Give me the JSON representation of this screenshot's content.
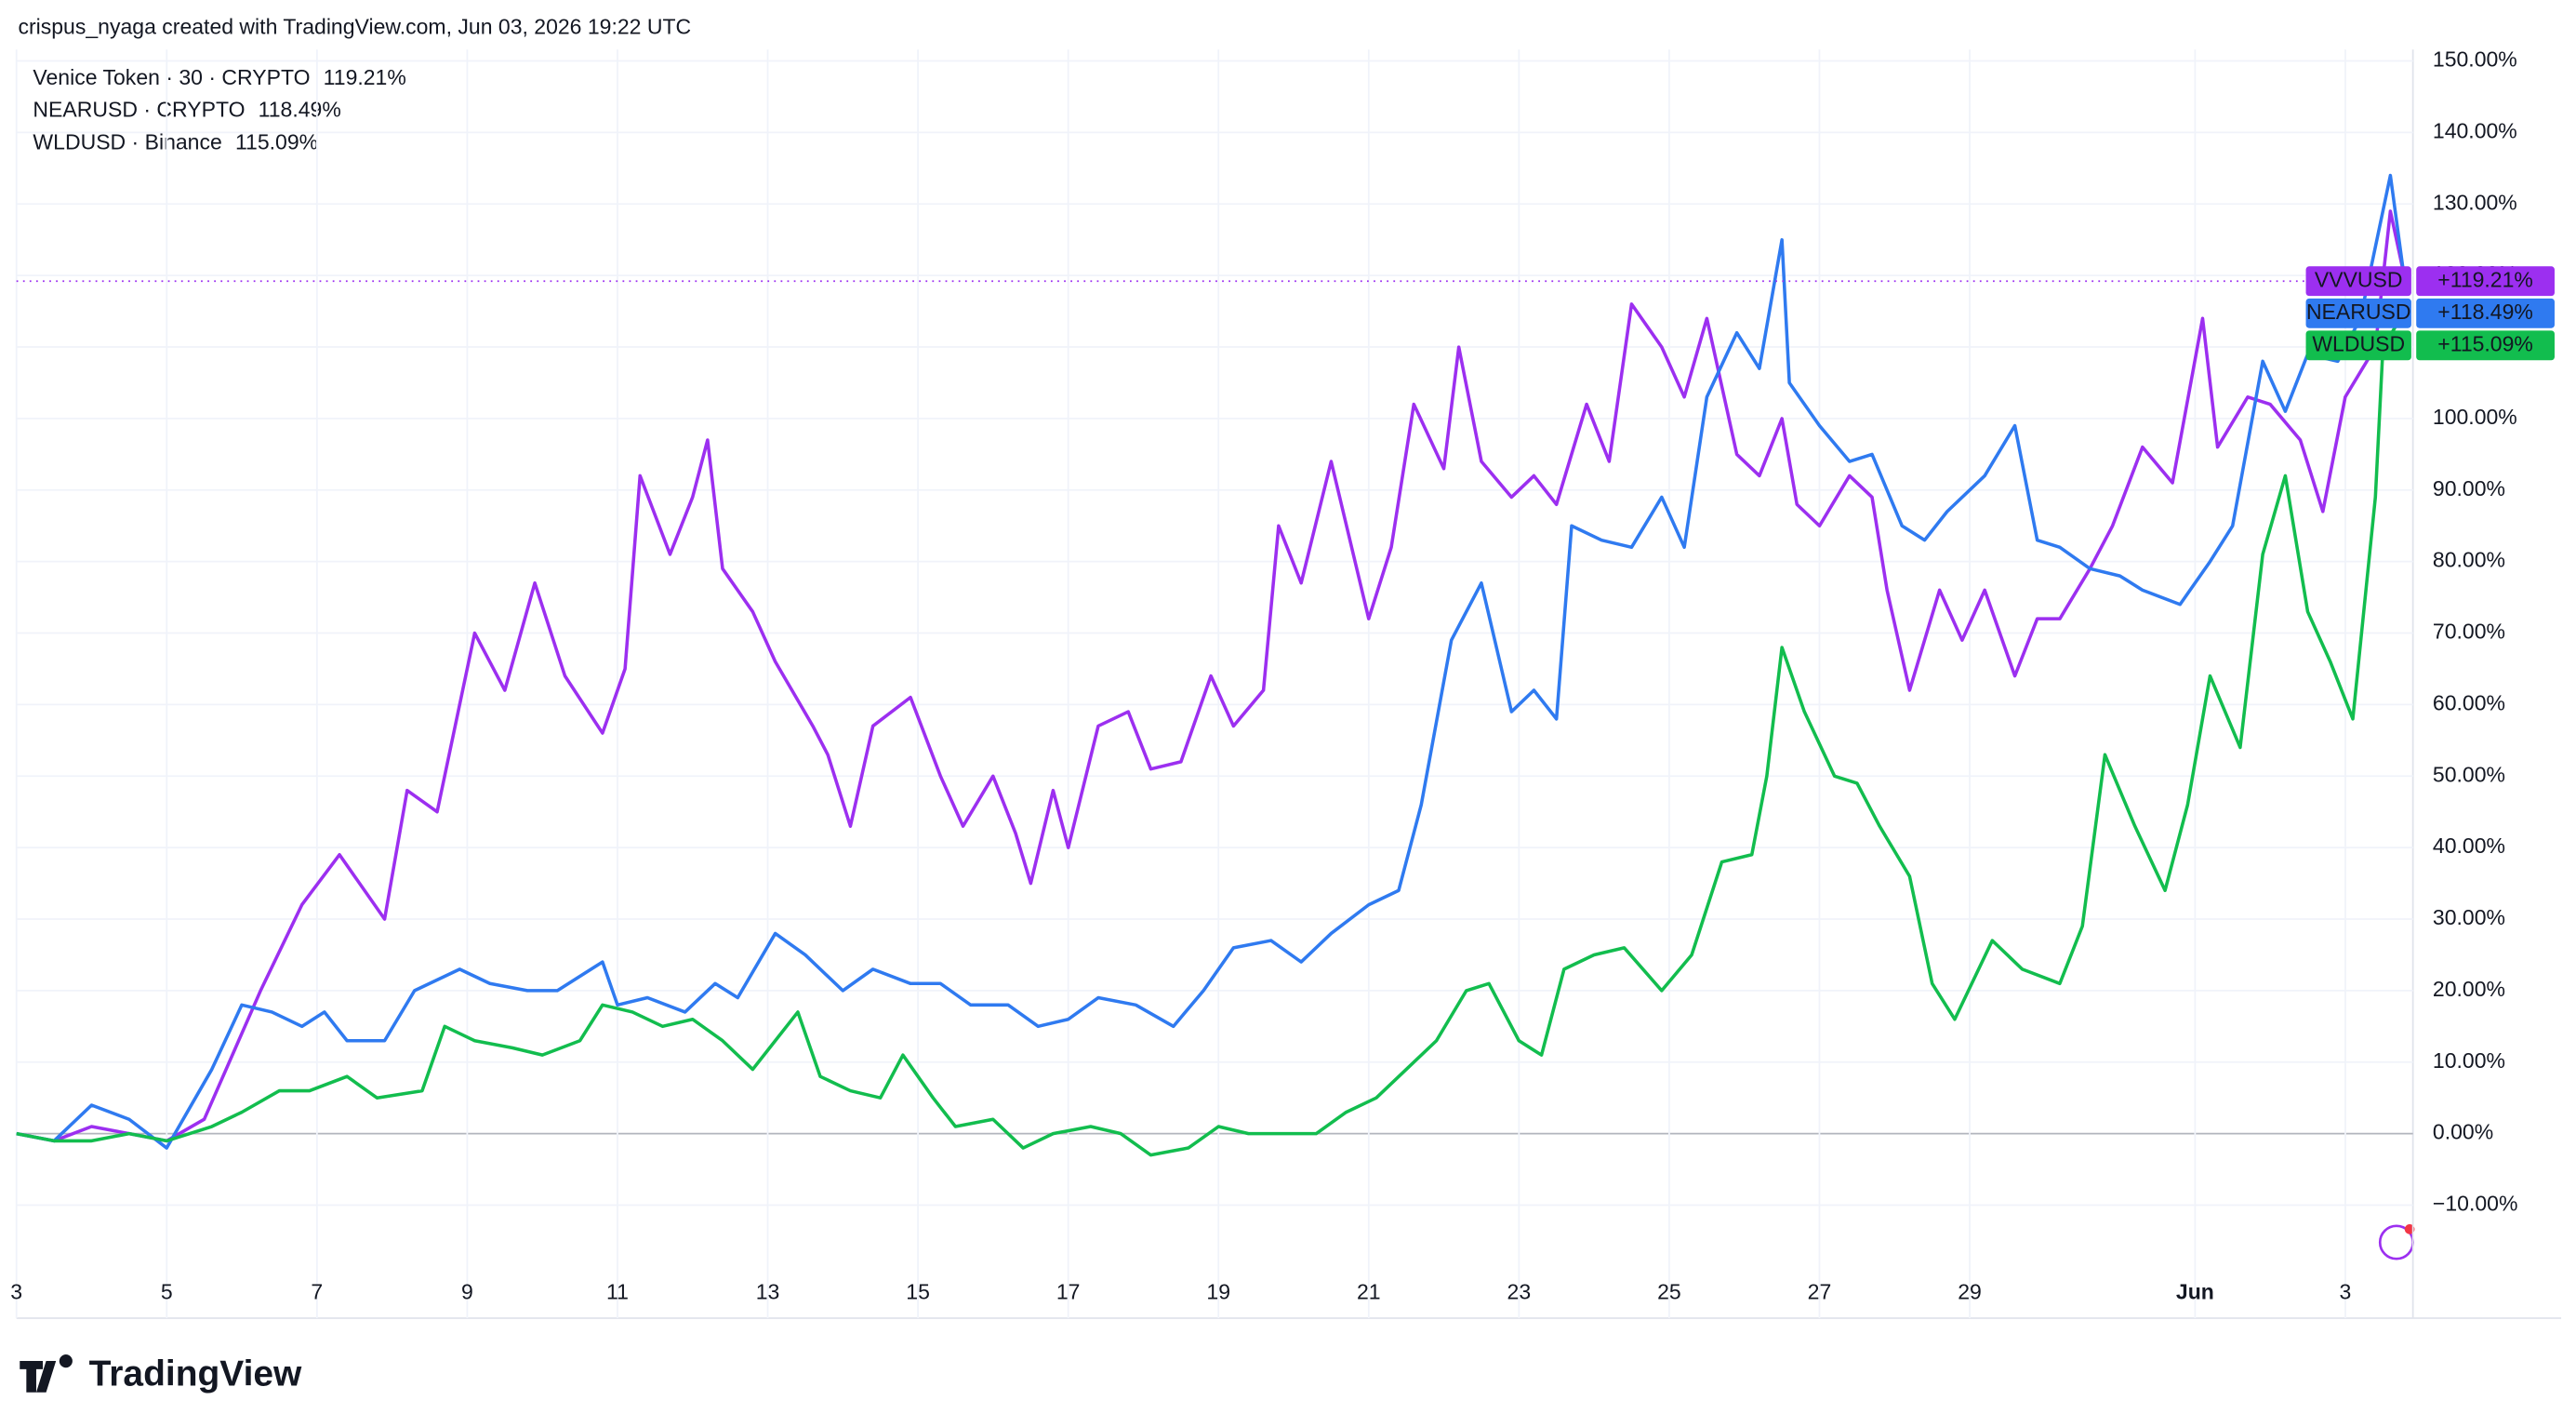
{
  "header": {
    "text": "crispus_nyaga created with TradingView.com, Jun 03, 2026 19:22 UTC"
  },
  "footer": {
    "logo": "TradingView"
  },
  "chart_data": {
    "type": "line",
    "xlim": [
      3,
      34.9
    ],
    "ylim": [
      -25.8,
      151.6
    ],
    "xticks": [
      3,
      5,
      7,
      9,
      11,
      13,
      15,
      17,
      19,
      21,
      23,
      25,
      27,
      29,
      {
        "value": 32,
        "label": "Jun"
      },
      {
        "value": 34,
        "label": "3"
      }
    ],
    "yticks": [
      {
        "value": -10,
        "label": "−10.00%"
      },
      {
        "value": 0,
        "label": "0.00%"
      },
      {
        "value": 10,
        "label": "10.00%"
      },
      {
        "value": 20,
        "label": "20.00%"
      },
      {
        "value": 30,
        "label": "30.00%"
      },
      {
        "value": 40,
        "label": "40.00%"
      },
      {
        "value": 50,
        "label": "50.00%"
      },
      {
        "value": 60,
        "label": "60.00%"
      },
      {
        "value": 70,
        "label": "70.00%"
      },
      {
        "value": 80,
        "label": "80.00%"
      },
      {
        "value": 90,
        "label": "90.00%"
      },
      {
        "value": 100,
        "label": "100.00%"
      },
      {
        "value": 110,
        "label": "110.00%"
      },
      {
        "value": 120,
        "label": "120.00%"
      },
      {
        "value": 130,
        "label": "130.00%"
      },
      {
        "value": 140,
        "label": "140.00%"
      },
      {
        "value": 150,
        "label": "150.00%"
      }
    ],
    "grid": true,
    "series": [
      {
        "name": "Venice Token · 30 · CRYPTO",
        "symbol": "VVVUSD",
        "value_label": "119.21%",
        "badge_label": "+119.21%",
        "color": "#9c2ff0",
        "x": [
          3,
          3.5,
          4,
          4.5,
          5,
          5.5,
          6.25,
          6.8,
          7.3,
          7.9,
          8.2,
          8.6,
          9.1,
          9.5,
          9.9,
          10.3,
          10.8,
          11.1,
          11.3,
          11.7,
          12,
          12.2,
          12.4,
          12.8,
          13.1,
          13.6,
          13.8,
          14.1,
          14.4,
          14.9,
          15.3,
          15.6,
          16,
          16.3,
          16.5,
          16.8,
          17,
          17.4,
          17.8,
          18.1,
          18.5,
          18.9,
          19.2,
          19.6,
          19.8,
          20.1,
          20.5,
          21,
          21.3,
          21.6,
          22,
          22.2,
          22.5,
          22.9,
          23.2,
          23.5,
          23.9,
          24.2,
          24.5,
          24.9,
          25.2,
          25.5,
          25.9,
          26.2,
          26.5,
          26.7,
          27,
          27.4,
          27.7,
          27.9,
          28.2,
          28.6,
          28.9,
          29.2,
          29.6,
          29.9,
          30.2,
          30.6,
          30.9,
          31.3,
          31.7,
          32.1,
          32.3,
          32.7,
          33,
          33.4,
          33.7,
          34,
          34.4,
          34.6,
          34.8
        ],
        "values": [
          0,
          -1,
          1,
          0,
          -1,
          2,
          20,
          32,
          39,
          30,
          48,
          45,
          70,
          62,
          77,
          64,
          56,
          65,
          92,
          81,
          89,
          97,
          79,
          73,
          66,
          57,
          53,
          43,
          57,
          61,
          50,
          43,
          50,
          42,
          35,
          48,
          40,
          57,
          59,
          51,
          52,
          64,
          57,
          62,
          85,
          77,
          94,
          72,
          82,
          102,
          93,
          110,
          94,
          89,
          92,
          88,
          102,
          94,
          116,
          110,
          103,
          114,
          95,
          92,
          100,
          88,
          85,
          92,
          89,
          76,
          62,
          76,
          69,
          76,
          64,
          72,
          72,
          79,
          85,
          96,
          91,
          114,
          96,
          103,
          102,
          97,
          87,
          103,
          110,
          129,
          119.21
        ]
      },
      {
        "name": "NEARUSD · CRYPTO",
        "symbol": "NEARUSD",
        "value_label": "118.49%",
        "badge_label": "+118.49%",
        "color": "#2f7af0",
        "x": [
          3,
          3.5,
          4,
          4.5,
          5,
          5.6,
          6,
          6.4,
          6.8,
          7.1,
          7.4,
          7.9,
          8.3,
          8.9,
          9.3,
          9.8,
          10.2,
          10.8,
          11,
          11.4,
          11.9,
          12.3,
          12.6,
          13.1,
          13.5,
          14,
          14.4,
          14.9,
          15.3,
          15.7,
          16.2,
          16.6,
          17,
          17.4,
          17.9,
          18.4,
          18.8,
          19.2,
          19.7,
          20.1,
          20.5,
          21,
          21.4,
          21.7,
          22.1,
          22.5,
          22.9,
          23.2,
          23.5,
          23.7,
          24.1,
          24.5,
          24.9,
          25.2,
          25.5,
          25.9,
          26.2,
          26.5,
          26.6,
          27,
          27.4,
          27.7,
          28.1,
          28.4,
          28.7,
          29.2,
          29.6,
          29.9,
          30.2,
          30.6,
          31,
          31.3,
          31.8,
          32.2,
          32.5,
          32.9,
          33.2,
          33.5,
          33.9,
          34.2,
          34.6,
          34.8
        ],
        "values": [
          0,
          -1,
          4,
          2,
          -2,
          9,
          18,
          17,
          15,
          17,
          13,
          13,
          20,
          23,
          21,
          20,
          20,
          24,
          18,
          19,
          17,
          21,
          19,
          28,
          25,
          20,
          23,
          21,
          21,
          18,
          18,
          15,
          16,
          19,
          18,
          15,
          20,
          26,
          27,
          24,
          28,
          32,
          34,
          46,
          69,
          77,
          59,
          62,
          58,
          85,
          83,
          82,
          89,
          82,
          103,
          112,
          107,
          125,
          105,
          99,
          94,
          95,
          85,
          83,
          87,
          92,
          99,
          83,
          82,
          79,
          78,
          76,
          74,
          80,
          85,
          108,
          101,
          109,
          108,
          114,
          134,
          118.49
        ]
      },
      {
        "name": "WLDUSD · Binance",
        "symbol": "WLDUSD",
        "value_label": "115.09%",
        "badge_label": "+115.09%",
        "color": "#12bd4e",
        "x": [
          3,
          3.5,
          4,
          4.5,
          5,
          5.6,
          6,
          6.5,
          6.9,
          7.4,
          7.8,
          8.4,
          8.7,
          9.1,
          9.6,
          10,
          10.5,
          10.8,
          11.2,
          11.6,
          12,
          12.4,
          12.8,
          13.1,
          13.4,
          13.7,
          14.1,
          14.5,
          14.8,
          15.2,
          15.5,
          16,
          16.4,
          16.8,
          17.3,
          17.7,
          18.1,
          18.6,
          19,
          19.4,
          19.9,
          20.3,
          20.7,
          21.1,
          21.5,
          21.9,
          22.3,
          22.6,
          23,
          23.3,
          23.6,
          24,
          24.4,
          24.9,
          25.3,
          25.7,
          26.1,
          26.3,
          26.5,
          26.8,
          27.2,
          27.5,
          27.8,
          28.2,
          28.5,
          28.8,
          29.3,
          29.7,
          30.2,
          30.5,
          30.8,
          31.2,
          31.6,
          31.9,
          32.2,
          32.6,
          32.9,
          33.2,
          33.5,
          33.8,
          34.1,
          34.4,
          34.5,
          34.8
        ],
        "values": [
          0,
          -1,
          -1,
          0,
          -1,
          1,
          3,
          6,
          6,
          8,
          5,
          6,
          15,
          13,
          12,
          11,
          13,
          18,
          17,
          15,
          16,
          13,
          9,
          13,
          17,
          8,
          6,
          5,
          11,
          5,
          1,
          2,
          -2,
          0,
          1,
          0,
          -3,
          -2,
          1,
          0,
          0,
          0,
          3,
          5,
          9,
          13,
          20,
          21,
          13,
          11,
          23,
          25,
          26,
          20,
          25,
          38,
          39,
          50,
          68,
          59,
          50,
          49,
          43,
          36,
          21,
          16,
          27,
          23,
          21,
          29,
          53,
          43,
          34,
          46,
          64,
          54,
          81,
          92,
          73,
          66,
          58,
          89,
          110,
          115.09
        ]
      }
    ]
  }
}
